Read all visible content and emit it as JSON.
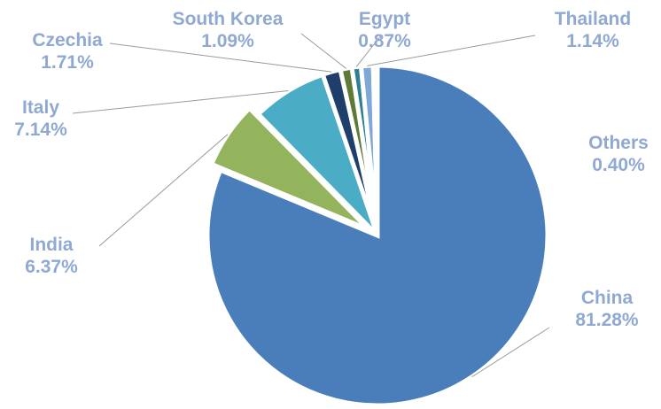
{
  "chart_data": {
    "type": "pie",
    "title": "",
    "exploded": [
      "India"
    ],
    "slices": [
      {
        "name": "China",
        "percent_label": "81.28%",
        "value": 81.28,
        "color": "#4A7EBB"
      },
      {
        "name": "India",
        "percent_label": "6.37%",
        "value": 6.37,
        "color": "#93B35C"
      },
      {
        "name": "Italy",
        "percent_label": "7.14%",
        "value": 7.14,
        "color": "#4BACC6"
      },
      {
        "name": "Czechia",
        "percent_label": "1.71%",
        "value": 1.71,
        "color": "#1F3F6B"
      },
      {
        "name": "South Korea",
        "percent_label": "1.09%",
        "value": 1.09,
        "color": "#5F7A36"
      },
      {
        "name": "Egypt",
        "percent_label": "0.87%",
        "value": 0.87,
        "color": "#2F7F93"
      },
      {
        "name": "Thailand",
        "percent_label": "1.14%",
        "value": 1.14,
        "color": "#7FA7D8"
      },
      {
        "name": "Others",
        "percent_label": "0.40%",
        "value": 0.4,
        "color": "#B4CB8A"
      }
    ],
    "label_color": "#8FA9D3",
    "leader_color": "#9A9A9A"
  }
}
